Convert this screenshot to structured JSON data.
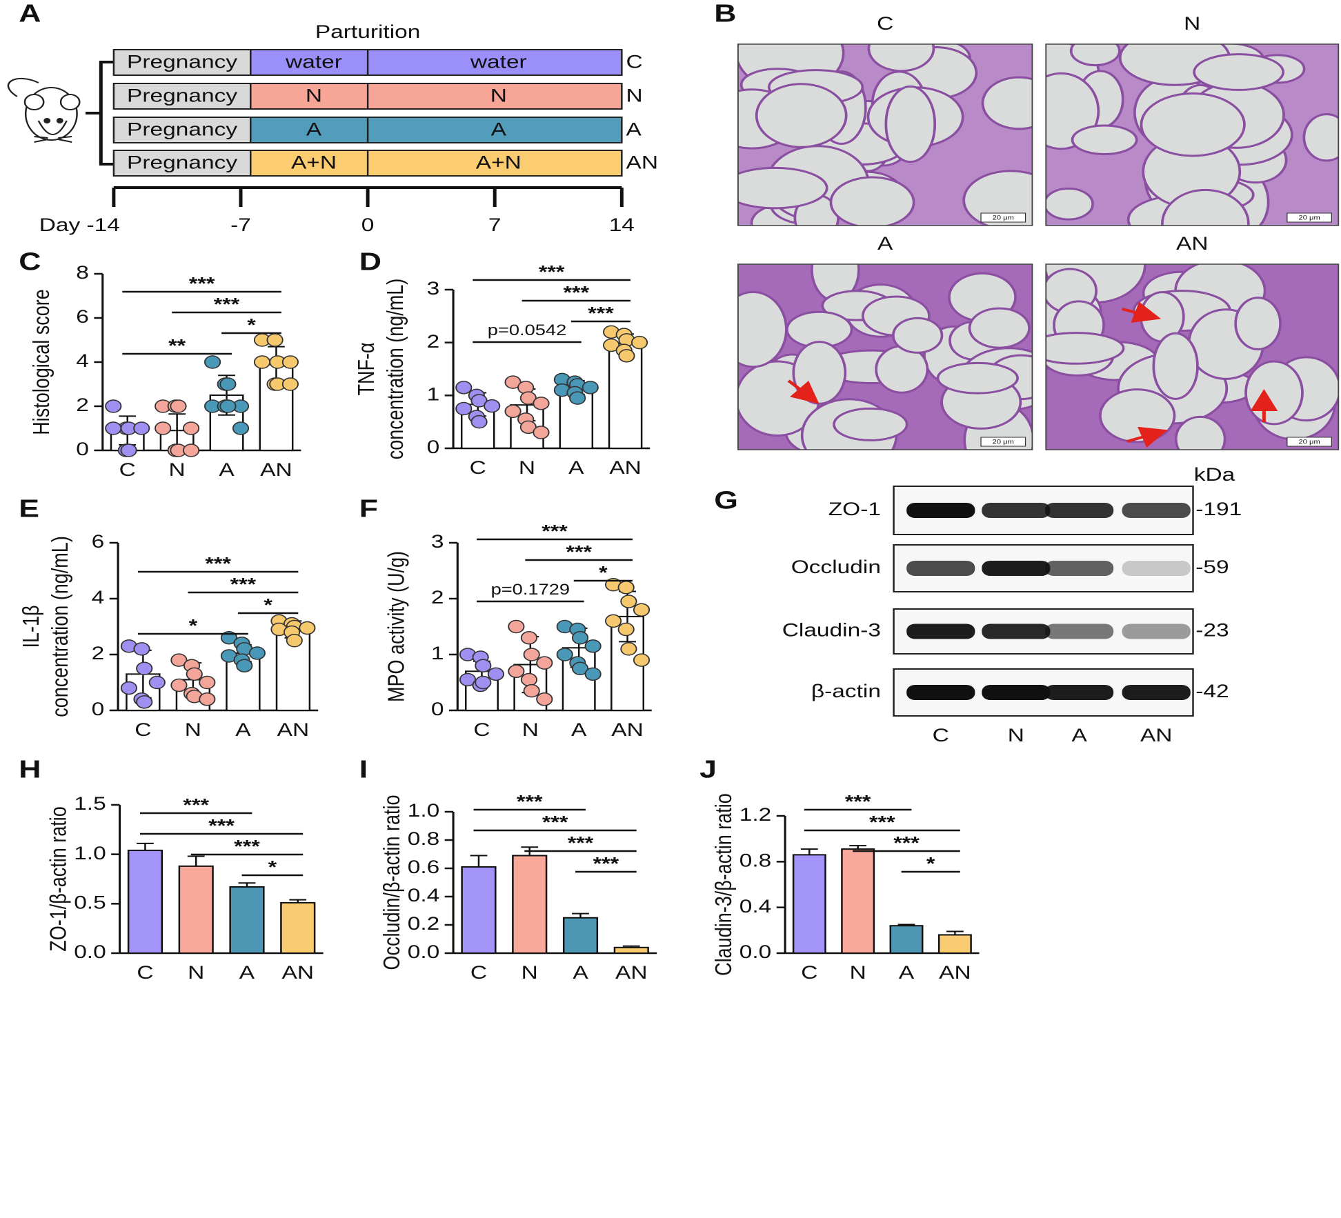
{
  "timeline": {
    "label": "A",
    "top_label": "Parturition",
    "rows": [
      {
        "phase": "Pregnancy",
        "first": "water",
        "second": "water",
        "group": "C",
        "color": "#9b8ff9"
      },
      {
        "phase": "Pregnancy",
        "first": "N",
        "second": "N",
        "group": "N",
        "color": "#f6a597"
      },
      {
        "phase": "Pregnancy",
        "first": "A",
        "second": "A",
        "group": "A",
        "color": "#529dbc"
      },
      {
        "phase": "Pregnancy",
        "first": "A+N",
        "second": "A+N",
        "group": "AN",
        "color": "#fbcd70"
      }
    ],
    "ticks": [
      {
        "value": -14,
        "label": "Day -14"
      },
      -7,
      0,
      7,
      14
    ],
    "xlim": [
      -14,
      14
    ]
  },
  "histology": {
    "label": "B",
    "scale_bar": "20 μm",
    "captions": [
      "C",
      "N",
      "A",
      "AN"
    ]
  },
  "blot": {
    "label": "G",
    "unit": "kDa",
    "lanes": [
      "C",
      "N",
      "A",
      "AN"
    ],
    "proteins": [
      {
        "name": "ZO-1",
        "size": "-191"
      },
      {
        "name": "Occludin",
        "size": "-59"
      },
      {
        "name": "Claudin-3",
        "size": "-23"
      },
      {
        "name": "β-actin",
        "size": "-42"
      }
    ]
  },
  "chart_data": [
    {
      "type": "bar",
      "label": "C",
      "ylabel": [
        "Histological score"
      ],
      "categories": [
        "C",
        "N",
        "A",
        "AN"
      ],
      "colors": [
        "#9f8ff0",
        "#f4a59a",
        "#4a98b8",
        "#f7c96f"
      ],
      "bar_style": "outline",
      "error_direction": "both",
      "values": [
        0.9,
        0.9,
        2.5,
        3.9
      ],
      "errors": [
        0.65,
        0.75,
        0.9,
        0.8
      ],
      "points": [
        [
          2,
          1,
          1,
          1,
          1,
          0,
          0
        ],
        [
          2,
          2,
          2,
          1,
          1,
          0,
          0,
          0
        ],
        [
          4,
          3,
          3,
          2,
          2,
          2,
          2,
          1
        ],
        [
          5,
          5,
          4,
          4,
          4,
          3,
          3,
          3
        ]
      ],
      "ylim": [
        0,
        8
      ],
      "yticks": [
        0,
        2,
        4,
        6,
        8
      ],
      "annotations": [
        {
          "text": "***",
          "between": [
            "C",
            "AN"
          ]
        },
        {
          "text": "***",
          "between": [
            "N",
            "AN"
          ]
        },
        {
          "text": "*",
          "between": [
            "A",
            "AN"
          ]
        },
        {
          "text": "**",
          "between": [
            "C",
            "A"
          ]
        }
      ]
    },
    {
      "type": "bar",
      "label": "D",
      "ylabel": [
        "TNF-α",
        "concentration (ng/mL)"
      ],
      "categories": [
        "C",
        "N",
        "A",
        "AN"
      ],
      "colors": [
        "#9f8ff0",
        "#f4a59a",
        "#4a98b8",
        "#f7c96f"
      ],
      "bar_style": "outline",
      "error_direction": "both",
      "values": [
        0.83,
        0.82,
        1.15,
        1.98
      ],
      "errors": [
        0.22,
        0.3,
        0.13,
        0.18
      ],
      "points": [
        [
          1.15,
          1.0,
          0.9,
          0.8,
          0.75,
          0.6,
          0.5
        ],
        [
          1.25,
          1.15,
          0.95,
          0.85,
          0.7,
          0.55,
          0.4,
          0.3
        ],
        [
          1.3,
          1.25,
          1.2,
          1.15,
          1.1,
          1.05,
          0.95
        ],
        [
          2.2,
          2.15,
          2.05,
          2.0,
          1.95,
          1.85,
          1.75
        ]
      ],
      "ylim": [
        0,
        3
      ],
      "yticks": [
        0,
        1,
        2,
        3
      ],
      "annotations": [
        {
          "text": "***",
          "between": [
            "C",
            "AN"
          ]
        },
        {
          "text": "***",
          "between": [
            "N",
            "AN"
          ]
        },
        {
          "text": "***",
          "between": [
            "A",
            "AN"
          ]
        },
        {
          "text": "p=0.0542",
          "between": [
            "C",
            "A"
          ]
        }
      ]
    },
    {
      "type": "bar",
      "label": "E",
      "ylabel": [
        "IL-1β",
        "concentration (ng/mL)"
      ],
      "categories": [
        "C",
        "N",
        "A",
        "AN"
      ],
      "colors": [
        "#9f8ff0",
        "#f4a59a",
        "#4a98b8",
        "#f7c96f"
      ],
      "bar_style": "outline",
      "error_direction": "both",
      "values": [
        1.3,
        1.1,
        2.05,
        2.9
      ],
      "errors": [
        0.85,
        0.6,
        0.3,
        0.3
      ],
      "points": [
        [
          2.3,
          2.2,
          1.5,
          1.0,
          0.8,
          0.4,
          0.3
        ],
        [
          1.8,
          1.6,
          1.3,
          1.0,
          0.9,
          0.6,
          0.5,
          0.4
        ],
        [
          2.6,
          2.4,
          2.2,
          2.05,
          1.95,
          1.8,
          1.6
        ],
        [
          3.2,
          3.1,
          3.0,
          2.95,
          2.9,
          2.8,
          2.5
        ]
      ],
      "ylim": [
        0,
        6
      ],
      "yticks": [
        0,
        2,
        4,
        6
      ],
      "annotations": [
        {
          "text": "***",
          "between": [
            "C",
            "AN"
          ]
        },
        {
          "text": "***",
          "between": [
            "N",
            "AN"
          ]
        },
        {
          "text": "*",
          "between": [
            "A",
            "AN"
          ]
        },
        {
          "text": "*",
          "between": [
            "C",
            "A"
          ]
        }
      ]
    },
    {
      "type": "bar",
      "label": "F",
      "ylabel": [
        "MPO activity (U/g)"
      ],
      "categories": [
        "C",
        "N",
        "A",
        "AN"
      ],
      "colors": [
        "#9f8ff0",
        "#f4a59a",
        "#4a98b8",
        "#f7c96f"
      ],
      "bar_style": "outline",
      "error_direction": "both",
      "values": [
        0.7,
        0.82,
        1.12,
        1.68
      ],
      "errors": [
        0.18,
        0.5,
        0.35,
        0.45
      ],
      "points": [
        [
          1.0,
          0.95,
          0.8,
          0.65,
          0.55,
          0.45,
          0.5
        ],
        [
          1.5,
          1.3,
          1.0,
          0.85,
          0.7,
          0.55,
          0.35,
          0.2
        ],
        [
          1.5,
          1.45,
          1.3,
          1.15,
          1.0,
          0.85,
          0.75,
          0.65
        ],
        [
          2.25,
          2.2,
          1.95,
          1.8,
          1.6,
          1.45,
          1.1,
          0.9
        ]
      ],
      "ylim": [
        0,
        3
      ],
      "yticks": [
        0,
        1,
        2,
        3
      ],
      "annotations": [
        {
          "text": "***",
          "between": [
            "C",
            "AN"
          ]
        },
        {
          "text": "***",
          "between": [
            "N",
            "AN"
          ]
        },
        {
          "text": "*",
          "between": [
            "A",
            "AN"
          ]
        },
        {
          "text": "p=0.1729",
          "between": [
            "C",
            "A"
          ]
        }
      ]
    },
    {
      "type": "bar",
      "label": "H",
      "ylabel": [
        "ZO-1/β-actin ratio"
      ],
      "categories": [
        "C",
        "N",
        "A",
        "AN"
      ],
      "colors": [
        "#a394f7",
        "#f9a99b",
        "#4d97b5",
        "#f9cc72"
      ],
      "bar_style": "filled",
      "error_direction": "up",
      "values": [
        1.04,
        0.88,
        0.67,
        0.51
      ],
      "errors": [
        0.07,
        0.1,
        0.04,
        0.03
      ],
      "ylim": [
        0,
        1.5
      ],
      "yticks": [
        {
          "value": 0,
          "label": "0.0"
        },
        0.5,
        {
          "value": 1,
          "label": "1.0"
        },
        1.5
      ],
      "annotations": [
        {
          "text": "***",
          "between": [
            "C",
            "A"
          ]
        },
        {
          "text": "***",
          "between": [
            "C",
            "AN"
          ]
        },
        {
          "text": "***",
          "between": [
            "N",
            "AN"
          ]
        },
        {
          "text": "*",
          "between": [
            "A",
            "AN"
          ]
        }
      ]
    },
    {
      "type": "bar",
      "label": "I",
      "ylabel": [
        "Occludin/β-actin ratio"
      ],
      "categories": [
        "C",
        "N",
        "A",
        "AN"
      ],
      "colors": [
        "#a394f7",
        "#f9a99b",
        "#4d97b5",
        "#f9cc72"
      ],
      "bar_style": "filled",
      "error_direction": "up",
      "values": [
        0.61,
        0.69,
        0.25,
        0.04
      ],
      "errors": [
        0.08,
        0.06,
        0.03,
        0.01
      ],
      "ylim": [
        0,
        1
      ],
      "yticks": [
        {
          "value": 0,
          "label": "0.0"
        },
        0.2,
        0.4,
        0.6,
        0.8,
        {
          "value": 1,
          "label": "1.0"
        }
      ],
      "annotations": [
        {
          "text": "***",
          "between": [
            "C",
            "A"
          ]
        },
        {
          "text": "***",
          "between": [
            "C",
            "AN"
          ]
        },
        {
          "text": "***",
          "between": [
            "N",
            "AN"
          ]
        },
        {
          "text": "***",
          "between": [
            "A",
            "AN"
          ]
        }
      ]
    },
    {
      "type": "bar",
      "label": "J",
      "ylabel": [
        "Claudin-3/β-actin ratio"
      ],
      "categories": [
        "C",
        "N",
        "A",
        "AN"
      ],
      "colors": [
        "#a394f7",
        "#f9a99b",
        "#4d97b5",
        "#f9cc72"
      ],
      "bar_style": "filled",
      "error_direction": "up",
      "values": [
        0.86,
        0.91,
        0.24,
        0.16
      ],
      "errors": [
        0.05,
        0.03,
        0.01,
        0.03
      ],
      "ylim": [
        0,
        1.2
      ],
      "yticks": [
        {
          "value": 0,
          "label": "0.0"
        },
        0.4,
        0.8,
        1.2
      ],
      "annotations": [
        {
          "text": "***",
          "between": [
            "C",
            "A"
          ]
        },
        {
          "text": "***",
          "between": [
            "C",
            "AN"
          ]
        },
        {
          "text": "***",
          "between": [
            "N",
            "AN"
          ]
        },
        {
          "text": "*",
          "between": [
            "A",
            "AN"
          ]
        }
      ]
    }
  ]
}
